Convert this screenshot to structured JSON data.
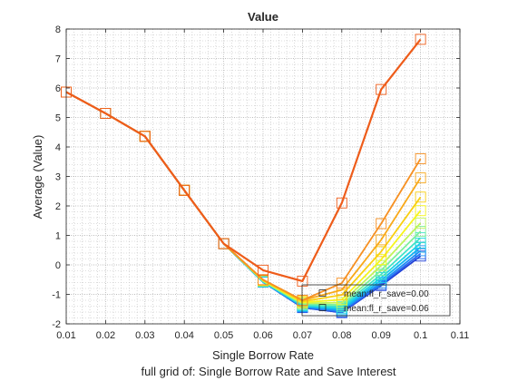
{
  "chart_data": {
    "type": "line",
    "title": "Value",
    "xlabel": "Single Borrow Rate",
    "ylabel": "Average (Value)",
    "subtitle": "full grid of: Single Borrow Rate and Save Interest",
    "xlim": [
      0.01,
      0.11
    ],
    "ylim": [
      -2,
      8
    ],
    "xticks": [
      0.01,
      0.02,
      0.03,
      0.04,
      0.05,
      0.06,
      0.07,
      0.08,
      0.09,
      0.1,
      0.11
    ],
    "yticks": [
      -2,
      -1,
      0,
      1,
      2,
      3,
      4,
      5,
      6,
      7,
      8
    ],
    "xtick_labels": [
      "0.01",
      "0.02",
      "0.03",
      "0.04",
      "0.05",
      "0.06",
      "0.07",
      "0.08",
      "0.09",
      "0.1",
      "0.11"
    ],
    "ytick_labels": [
      "-2",
      "-1",
      "0",
      "1",
      "2",
      "3",
      "4",
      "5",
      "6",
      "7",
      "8"
    ],
    "grid": true,
    "minor_grid": true,
    "legend_position": "bottom-right",
    "x": [
      0.01,
      0.02,
      0.03,
      0.04,
      0.05,
      0.06,
      0.07,
      0.08,
      0.09,
      0.1
    ],
    "series": [
      {
        "name": "mean:fl_r_save=0.00",
        "color": "#1f3fd6",
        "legend": true,
        "values": [
          5.86,
          5.14,
          4.36,
          2.53,
          0.72,
          -0.58,
          -1.45,
          -1.62,
          -0.7,
          0.3
        ]
      },
      {
        "color": "#2a66ee",
        "values": [
          5.86,
          5.14,
          4.36,
          2.53,
          0.72,
          -0.58,
          -1.44,
          -1.6,
          -0.66,
          0.38
        ]
      },
      {
        "color": "#1f8ff5",
        "values": [
          5.86,
          5.14,
          4.36,
          2.53,
          0.72,
          -0.58,
          -1.42,
          -1.56,
          -0.6,
          0.48
        ]
      },
      {
        "color": "#13b4f2",
        "values": [
          5.86,
          5.14,
          4.36,
          2.53,
          0.72,
          -0.58,
          -1.4,
          -1.52,
          -0.52,
          0.6
        ]
      },
      {
        "color": "#1cd3e6",
        "values": [
          5.86,
          5.14,
          4.36,
          2.53,
          0.72,
          -0.57,
          -1.38,
          -1.47,
          -0.43,
          0.74
        ]
      },
      {
        "color": "#3fe3c8",
        "values": [
          5.86,
          5.14,
          4.36,
          2.53,
          0.72,
          -0.56,
          -1.36,
          -1.42,
          -0.32,
          0.92
        ]
      },
      {
        "color": "#7cf09a",
        "values": [
          5.86,
          5.14,
          4.36,
          2.53,
          0.72,
          -0.55,
          -1.33,
          -1.36,
          -0.18,
          1.14
        ]
      },
      {
        "color": "#c0f35a",
        "values": [
          5.86,
          5.14,
          4.36,
          2.53,
          0.72,
          -0.54,
          -1.3,
          -1.28,
          -0.02,
          1.42
        ]
      },
      {
        "color": "#f6f51c",
        "values": [
          5.86,
          5.14,
          4.36,
          2.53,
          0.72,
          -0.53,
          -1.27,
          -1.18,
          0.18,
          1.84
        ]
      },
      {
        "color": "#f9cf12",
        "values": [
          5.86,
          5.14,
          4.36,
          2.53,
          0.72,
          -0.52,
          -1.24,
          -1.02,
          0.45,
          2.3
        ]
      },
      {
        "color": "#f8a91a",
        "values": [
          5.86,
          5.14,
          4.36,
          2.53,
          0.72,
          -0.51,
          -1.2,
          -0.85,
          0.85,
          2.95
        ]
      },
      {
        "color": "#f69022",
        "values": [
          5.86,
          5.14,
          4.36,
          2.53,
          0.72,
          -0.5,
          -1.2,
          -0.62,
          1.4,
          3.6
        ]
      },
      {
        "name": "mean:fl_r_save=0.06",
        "color": "#ee5c1a",
        "legend": true,
        "values": [
          5.86,
          5.14,
          4.36,
          2.53,
          0.72,
          -0.18,
          -0.55,
          2.1,
          5.95,
          7.65
        ]
      }
    ]
  }
}
